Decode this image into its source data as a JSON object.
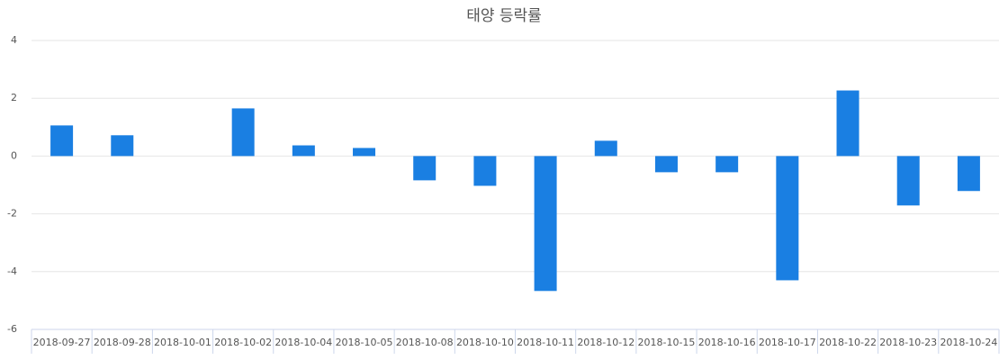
{
  "chart_data": {
    "type": "bar",
    "title": "태양 등락률",
    "categories": [
      "2018-09-27",
      "2018-09-28",
      "2018-10-01",
      "2018-10-02",
      "2018-10-04",
      "2018-10-05",
      "2018-10-08",
      "2018-10-10",
      "2018-10-11",
      "2018-10-12",
      "2018-10-15",
      "2018-10-16",
      "2018-10-17",
      "2018-10-22",
      "2018-10-23",
      "2018-10-24"
    ],
    "values": [
      1.06,
      0.72,
      0,
      1.65,
      0.37,
      0.28,
      -0.84,
      -1.03,
      -4.67,
      0.53,
      -0.56,
      -0.56,
      -4.3,
      2.27,
      -1.71,
      -1.21
    ],
    "color": "#1a7fe2",
    "ylim": [
      -6,
      4
    ],
    "yticks": [
      -6,
      -4,
      -2,
      0,
      2,
      4
    ],
    "grid": true
  }
}
